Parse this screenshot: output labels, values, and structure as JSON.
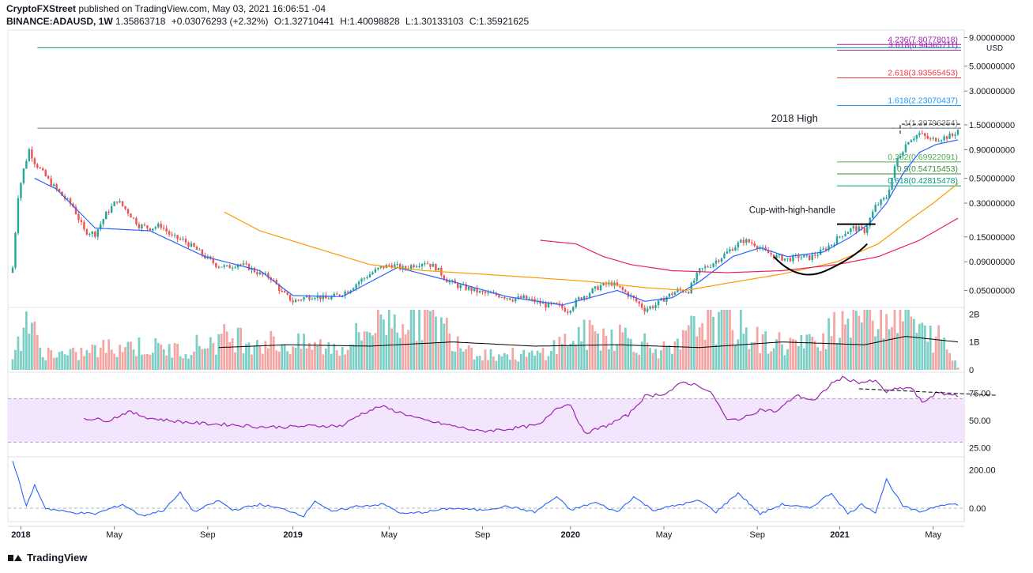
{
  "header": {
    "publisher": "CryptoFXStreet",
    "published_text": "published on TradingView.com, May 03, 2021 16:06:51 -04",
    "symbol": "BINANCE:ADAUSD, 1W",
    "price": "1.35863718",
    "change": "+0.03076293 (+2.32%)",
    "open_label": "O:",
    "open": "1.32710441",
    "high_label": "H:",
    "high": "1.40098828",
    "low_label": "L:",
    "low": "1.30133103",
    "close_label": "C:",
    "close": "1.35921625"
  },
  "footer": {
    "brand": "TradingView"
  },
  "colors": {
    "up": "#26a69a",
    "down": "#ef5350",
    "ema_fast": "#2962ff",
    "ema_mid": "#ff9800",
    "ema_slow": "#e91e63",
    "volume_up": "#7ccfc6",
    "volume_down": "#f3a6a4",
    "rsi": "#9c27b0",
    "rsi_band": "#f3e5fc",
    "osc": "#2962ff"
  },
  "chart_data": [
    {
      "type": "candlestick",
      "panel": "price",
      "y_scale": "log",
      "currency_label": "USD",
      "y_ticks": [
        "9.00000000",
        "5.00000000",
        "3.00000000",
        "1.50000000",
        "0.90000000",
        "0.50000000",
        "0.30000000",
        "0.15000000",
        "0.09000000",
        "0.05000000"
      ],
      "y_tick_values": [
        9,
        5,
        3,
        1.5,
        0.9,
        0.5,
        0.3,
        0.15,
        0.09,
        0.05
      ],
      "ylim": [
        0.037,
        10.5
      ],
      "x_ticks": [
        "2018",
        "May",
        "Sep",
        "2019",
        "May",
        "Sep",
        "2020",
        "May",
        "Sep",
        "2021",
        "May"
      ],
      "x_tick_index": [
        3,
        37,
        71,
        102,
        137,
        171,
        203,
        237,
        271,
        301,
        335
      ],
      "bar_count": 345,
      "close_anchors": [
        [
          0,
          0.08
        ],
        [
          2,
          0.35
        ],
        [
          4,
          0.6
        ],
        [
          6,
          0.9
        ],
        [
          8,
          0.7
        ],
        [
          10,
          0.6
        ],
        [
          14,
          0.45
        ],
        [
          18,
          0.35
        ],
        [
          22,
          0.28
        ],
        [
          26,
          0.17
        ],
        [
          30,
          0.16
        ],
        [
          34,
          0.24
        ],
        [
          38,
          0.32
        ],
        [
          42,
          0.25
        ],
        [
          46,
          0.19
        ],
        [
          50,
          0.18
        ],
        [
          54,
          0.19
        ],
        [
          58,
          0.15
        ],
        [
          62,
          0.14
        ],
        [
          66,
          0.12
        ],
        [
          70,
          0.1
        ],
        [
          74,
          0.085
        ],
        [
          78,
          0.08
        ],
        [
          82,
          0.087
        ],
        [
          86,
          0.08
        ],
        [
          90,
          0.07
        ],
        [
          94,
          0.065
        ],
        [
          98,
          0.048
        ],
        [
          102,
          0.04
        ],
        [
          106,
          0.043
        ],
        [
          110,
          0.045
        ],
        [
          114,
          0.042
        ],
        [
          118,
          0.045
        ],
        [
          122,
          0.05
        ],
        [
          126,
          0.06
        ],
        [
          130,
          0.07
        ],
        [
          134,
          0.08
        ],
        [
          138,
          0.085
        ],
        [
          142,
          0.078
        ],
        [
          146,
          0.085
        ],
        [
          150,
          0.09
        ],
        [
          154,
          0.08
        ],
        [
          158,
          0.062
        ],
        [
          162,
          0.055
        ],
        [
          166,
          0.052
        ],
        [
          170,
          0.048
        ],
        [
          174,
          0.046
        ],
        [
          178,
          0.045
        ],
        [
          182,
          0.042
        ],
        [
          186,
          0.043
        ],
        [
          190,
          0.04
        ],
        [
          194,
          0.037
        ],
        [
          198,
          0.037
        ],
        [
          202,
          0.033
        ],
        [
          206,
          0.042
        ],
        [
          210,
          0.048
        ],
        [
          214,
          0.055
        ],
        [
          218,
          0.058
        ],
        [
          222,
          0.05
        ],
        [
          226,
          0.042
        ],
        [
          230,
          0.034
        ],
        [
          234,
          0.037
        ],
        [
          238,
          0.044
        ],
        [
          242,
          0.05
        ],
        [
          246,
          0.05
        ],
        [
          250,
          0.075
        ],
        [
          254,
          0.085
        ],
        [
          258,
          0.1
        ],
        [
          262,
          0.12
        ],
        [
          266,
          0.14
        ],
        [
          270,
          0.13
        ],
        [
          274,
          0.11
        ],
        [
          278,
          0.1
        ],
        [
          282,
          0.095
        ],
        [
          286,
          0.1
        ],
        [
          290,
          0.098
        ],
        [
          294,
          0.11
        ],
        [
          298,
          0.13
        ],
        [
          302,
          0.16
        ],
        [
          306,
          0.18
        ],
        [
          310,
          0.17
        ],
        [
          314,
          0.28
        ],
        [
          318,
          0.34
        ],
        [
          322,
          0.75
        ],
        [
          326,
          1.1
        ],
        [
          330,
          1.25
        ],
        [
          334,
          1.1
        ],
        [
          338,
          1.15
        ],
        [
          342,
          1.2
        ],
        [
          344,
          1.36
        ]
      ],
      "ema_fast_anchors": [
        [
          8,
          0.5
        ],
        [
          16,
          0.4
        ],
        [
          30,
          0.18
        ],
        [
          50,
          0.17
        ],
        [
          70,
          0.1
        ],
        [
          90,
          0.075
        ],
        [
          102,
          0.045
        ],
        [
          120,
          0.044
        ],
        [
          140,
          0.08
        ],
        [
          160,
          0.06
        ],
        [
          180,
          0.044
        ],
        [
          200,
          0.037
        ],
        [
          220,
          0.05
        ],
        [
          230,
          0.04
        ],
        [
          240,
          0.043
        ],
        [
          250,
          0.06
        ],
        [
          262,
          0.1
        ],
        [
          272,
          0.12
        ],
        [
          282,
          0.1
        ],
        [
          295,
          0.11
        ],
        [
          305,
          0.15
        ],
        [
          312,
          0.2
        ],
        [
          318,
          0.3
        ],
        [
          324,
          0.55
        ],
        [
          330,
          0.85
        ],
        [
          336,
          1.0
        ],
        [
          344,
          1.1
        ]
      ],
      "ema_mid_anchors": [
        [
          77,
          0.25
        ],
        [
          90,
          0.17
        ],
        [
          110,
          0.12
        ],
        [
          130,
          0.085
        ],
        [
          150,
          0.075
        ],
        [
          170,
          0.07
        ],
        [
          190,
          0.065
        ],
        [
          210,
          0.06
        ],
        [
          230,
          0.053
        ],
        [
          245,
          0.05
        ],
        [
          260,
          0.058
        ],
        [
          280,
          0.07
        ],
        [
          300,
          0.09
        ],
        [
          315,
          0.13
        ],
        [
          325,
          0.2
        ],
        [
          335,
          0.3
        ],
        [
          344,
          0.45
        ]
      ],
      "ema_slow_anchors": [
        [
          192,
          0.14
        ],
        [
          205,
          0.13
        ],
        [
          215,
          0.1
        ],
        [
          225,
          0.085
        ],
        [
          240,
          0.075
        ],
        [
          260,
          0.072
        ],
        [
          280,
          0.075
        ],
        [
          300,
          0.085
        ],
        [
          315,
          0.1
        ],
        [
          330,
          0.14
        ],
        [
          344,
          0.22
        ]
      ],
      "horizontal_lines": [
        {
          "label": "2018 High",
          "value": 1.4,
          "from_index": 9
        }
      ],
      "fibonacci": [
        {
          "label": "4.236(7.80778018)",
          "value": 7.8078,
          "color": "#9c27b0"
        },
        {
          "label": "3.618(6.94365711)",
          "value": 6.9437,
          "color": "#9c27b0"
        },
        {
          "label": "2.618(3.93565453)",
          "value": 3.9357,
          "color": "#f23645"
        },
        {
          "label": "1.618(2.23070437)",
          "value": 2.2307,
          "color": "#2196f3"
        },
        {
          "label": "1(1.39796354)",
          "value": 1.398,
          "color": "#787b86"
        },
        {
          "label": "0.382(0.69922091)",
          "value": 0.6992,
          "color": "#4caf50"
        },
        {
          "label": "0.5(0.54715453)",
          "value": 0.5472,
          "color": "#388e3c"
        },
        {
          "label": "0.618(0.42815478)",
          "value": 0.4282,
          "color": "#089981"
        }
      ],
      "annotations": [
        {
          "text": "2018 High"
        },
        {
          "text": "Cup-with-high-handle"
        }
      ]
    },
    {
      "type": "bar",
      "panel": "volume",
      "y_ticks": [
        "2B",
        "1B",
        "0"
      ],
      "y_tick_values": [
        2,
        1,
        0
      ],
      "ylim": [
        0,
        2.15
      ],
      "unit": "B",
      "volume_anchors": [
        [
          0,
          0.3
        ],
        [
          5,
          2.0
        ],
        [
          10,
          0.7
        ],
        [
          20,
          0.5
        ],
        [
          40,
          0.9
        ],
        [
          60,
          0.7
        ],
        [
          80,
          1.2
        ],
        [
          100,
          0.9
        ],
        [
          120,
          0.8
        ],
        [
          135,
          1.9
        ],
        [
          150,
          2.0
        ],
        [
          170,
          0.6
        ],
        [
          190,
          0.5
        ],
        [
          205,
          1.2
        ],
        [
          220,
          1.3
        ],
        [
          240,
          0.6
        ],
        [
          252,
          1.9
        ],
        [
          262,
          1.7
        ],
        [
          272,
          1.0
        ],
        [
          290,
          0.9
        ],
        [
          300,
          1.8
        ],
        [
          310,
          2.2
        ],
        [
          318,
          2.1
        ],
        [
          325,
          2.2
        ],
        [
          330,
          1.3
        ],
        [
          338,
          1.1
        ],
        [
          344,
          0.1
        ]
      ],
      "ma_anchors": [
        [
          75,
          0.8
        ],
        [
          100,
          0.9
        ],
        [
          130,
          0.85
        ],
        [
          160,
          1.0
        ],
        [
          190,
          0.85
        ],
        [
          220,
          0.9
        ],
        [
          250,
          0.8
        ],
        [
          280,
          1.0
        ],
        [
          310,
          0.9
        ],
        [
          325,
          1.2
        ],
        [
          344,
          1.0
        ]
      ]
    },
    {
      "type": "line",
      "panel": "rsi",
      "y_ticks": [
        "75.00",
        "50.00",
        "25.00"
      ],
      "y_tick_values": [
        75,
        50,
        25
      ],
      "band": [
        30,
        70
      ],
      "ylim": [
        18,
        92
      ],
      "rsi_anchors": [
        [
          26,
          52
        ],
        [
          35,
          50
        ],
        [
          42,
          58
        ],
        [
          50,
          52
        ],
        [
          60,
          49
        ],
        [
          70,
          47
        ],
        [
          80,
          46
        ],
        [
          90,
          44
        ],
        [
          100,
          44
        ],
        [
          110,
          45
        ],
        [
          120,
          45
        ],
        [
          126,
          55
        ],
        [
          134,
          63
        ],
        [
          140,
          58
        ],
        [
          144,
          55
        ],
        [
          148,
          51
        ],
        [
          160,
          45
        ],
        [
          170,
          40
        ],
        [
          180,
          42
        ],
        [
          192,
          46
        ],
        [
          198,
          62
        ],
        [
          203,
          65
        ],
        [
          208,
          38
        ],
        [
          216,
          45
        ],
        [
          224,
          55
        ],
        [
          230,
          72
        ],
        [
          238,
          75
        ],
        [
          244,
          85
        ],
        [
          250,
          82
        ],
        [
          255,
          73
        ],
        [
          260,
          50
        ],
        [
          266,
          52
        ],
        [
          272,
          60
        ],
        [
          278,
          58
        ],
        [
          285,
          73
        ],
        [
          292,
          68
        ],
        [
          298,
          84
        ],
        [
          302,
          89
        ],
        [
          308,
          85
        ],
        [
          314,
          86
        ],
        [
          318,
          76
        ],
        [
          322,
          79
        ],
        [
          327,
          80
        ],
        [
          331,
          66
        ],
        [
          336,
          75
        ],
        [
          344,
          73
        ]
      ]
    },
    {
      "type": "line",
      "panel": "oscillator",
      "y_ticks": [
        "200.00",
        "0.00"
      ],
      "y_tick_values": [
        200,
        0
      ],
      "ylim": [
        -70,
        260
      ],
      "osc_anchors": [
        [
          0,
          250
        ],
        [
          5,
          10
        ],
        [
          8,
          120
        ],
        [
          12,
          0
        ],
        [
          20,
          -20
        ],
        [
          30,
          -30
        ],
        [
          40,
          20
        ],
        [
          47,
          -40
        ],
        [
          55,
          -10
        ],
        [
          61,
          80
        ],
        [
          66,
          -20
        ],
        [
          75,
          40
        ],
        [
          80,
          -10
        ],
        [
          90,
          20
        ],
        [
          100,
          -10
        ],
        [
          106,
          -40
        ],
        [
          110,
          40
        ],
        [
          116,
          -20
        ],
        [
          125,
          10
        ],
        [
          135,
          20
        ],
        [
          142,
          -30
        ],
        [
          150,
          -20
        ],
        [
          160,
          0
        ],
        [
          170,
          -10
        ],
        [
          180,
          10
        ],
        [
          190,
          -20
        ],
        [
          198,
          60
        ],
        [
          203,
          -10
        ],
        [
          212,
          30
        ],
        [
          220,
          -20
        ],
        [
          226,
          60
        ],
        [
          233,
          -10
        ],
        [
          240,
          10
        ],
        [
          250,
          40
        ],
        [
          256,
          -20
        ],
        [
          264,
          80
        ],
        [
          272,
          -30
        ],
        [
          280,
          20
        ],
        [
          290,
          0
        ],
        [
          298,
          80
        ],
        [
          304,
          -30
        ],
        [
          309,
          20
        ],
        [
          314,
          -20
        ],
        [
          318,
          150
        ],
        [
          324,
          10
        ],
        [
          330,
          -20
        ],
        [
          338,
          20
        ],
        [
          344,
          20
        ]
      ]
    }
  ]
}
